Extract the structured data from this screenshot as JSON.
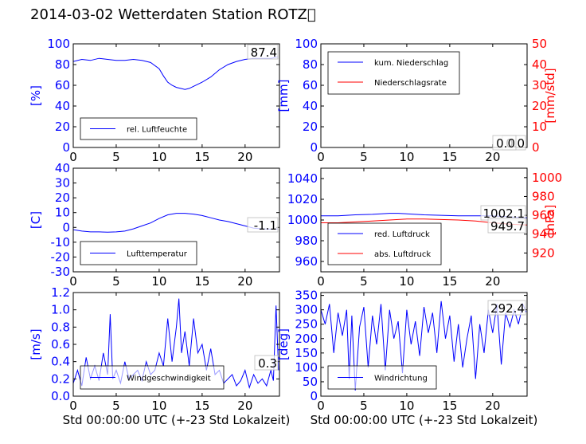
{
  "title": "2014-03-02 Wetterdaten Station ROTZ\u0000",
  "chart_data": [
    {
      "id": "humidity",
      "type": "line",
      "ylabel": "[%]",
      "ylim": [
        0,
        100
      ],
      "yticks": [
        0,
        20,
        40,
        60,
        80,
        100
      ],
      "xlim": [
        0,
        24
      ],
      "xticks": [
        0,
        5,
        10,
        15,
        20
      ],
      "legend_position": "lower-left",
      "series": [
        {
          "name": "rel. Luftfeuchte",
          "color": "#0000ff",
          "x": [
            0,
            1,
            2,
            3,
            4,
            5,
            6,
            7,
            8,
            9,
            10,
            10.5,
            11,
            11.5,
            12,
            12.5,
            13,
            13.5,
            14,
            14.5,
            15,
            16,
            17,
            18,
            19,
            20,
            21,
            22,
            23,
            23.8
          ],
          "y": [
            83,
            85,
            84,
            86,
            85,
            84,
            84,
            85,
            84,
            82,
            76,
            69,
            63,
            60,
            58,
            57,
            56,
            57,
            59,
            61,
            63,
            68,
            75,
            80,
            83,
            85,
            86,
            86,
            86,
            87.4
          ]
        }
      ],
      "annotations": [
        {
          "text": "87.4",
          "color": "#000000"
        }
      ]
    },
    {
      "id": "precip",
      "type": "line",
      "ylabel": "[mm]",
      "ylabel_right": "[mm/std]",
      "ylim": [
        0,
        100
      ],
      "yticks": [
        0,
        20,
        40,
        60,
        80,
        100
      ],
      "ylim_right": [
        0,
        50
      ],
      "yticks_right": [
        0,
        10,
        20,
        30,
        40,
        50
      ],
      "xlim": [
        0,
        24
      ],
      "xticks": [
        0,
        5,
        10,
        15,
        20
      ],
      "legend_position": "upper-left",
      "series": [
        {
          "name": "kum. Niederschlag",
          "color": "#0000ff",
          "x": [
            0,
            24
          ],
          "y": [
            0,
            0
          ]
        },
        {
          "name": "Niederschlagsrate",
          "color": "#ff0000",
          "axis": "right",
          "x": [
            0,
            24
          ],
          "y": [
            0,
            0
          ]
        }
      ],
      "annotations": [
        {
          "text": "0.0",
          "color": "#000000"
        },
        {
          "text": "0.0",
          "color": "#000000"
        }
      ]
    },
    {
      "id": "temperature",
      "type": "line",
      "ylabel": "[C]",
      "ylim": [
        -30,
        40
      ],
      "yticks": [
        -30,
        -20,
        -10,
        0,
        10,
        20,
        30,
        40
      ],
      "xlim": [
        0,
        24
      ],
      "xticks": [
        0,
        5,
        10,
        15,
        20
      ],
      "legend_position": "lower-left",
      "series": [
        {
          "name": "Lufttemperatur",
          "color": "#0000ff",
          "x": [
            0,
            1,
            2,
            3,
            4,
            5,
            6,
            7,
            8,
            9,
            10,
            11,
            12,
            13,
            14,
            15,
            16,
            17,
            18,
            19,
            20,
            21,
            22,
            23,
            23.8
          ],
          "y": [
            -1.5,
            -2.5,
            -3,
            -3,
            -3.2,
            -3,
            -2.5,
            -1,
            1,
            3,
            6,
            8.5,
            9.5,
            9.5,
            9,
            8,
            6.5,
            5,
            4,
            2.5,
            1,
            -0.5,
            -1,
            -1.2,
            -1.1
          ]
        }
      ],
      "annotations": [
        {
          "text": "-1.1",
          "color": "#000000"
        }
      ]
    },
    {
      "id": "pressure",
      "type": "line",
      "ylabel": "",
      "ylabel_right": "[hPa]",
      "ylim": [
        950,
        1050
      ],
      "yticks": [
        960,
        980,
        1000,
        1020,
        1040
      ],
      "ylim_right": [
        900,
        1010
      ],
      "yticks_right": [
        920,
        940,
        960,
        980,
        1000
      ],
      "xlim": [
        0,
        24
      ],
      "xticks": [
        0,
        5,
        10,
        15,
        20
      ],
      "legend_position": "lower-left",
      "series": [
        {
          "name": "red. Luftdruck",
          "color": "#0000ff",
          "x": [
            0,
            2,
            4,
            6,
            8,
            9,
            10,
            12,
            14,
            16,
            18,
            20,
            22,
            24
          ],
          "y": [
            1004,
            1004,
            1005,
            1005.5,
            1006.5,
            1006.5,
            1006,
            1005,
            1004.5,
            1004,
            1004,
            1004,
            1003,
            1002.1
          ]
        },
        {
          "name": "abs. Luftdruck",
          "color": "#ff0000",
          "axis": "right",
          "x": [
            0,
            2,
            4,
            6,
            8,
            10,
            12,
            14,
            16,
            18,
            20,
            22,
            24
          ],
          "y": [
            952,
            952,
            953,
            954,
            955,
            956,
            956,
            955.5,
            955,
            954,
            952,
            950.5,
            949.7
          ]
        }
      ],
      "annotations": [
        {
          "text": "1002.1",
          "color": "#000000"
        },
        {
          "text": "949.7",
          "color": "#000000"
        }
      ]
    },
    {
      "id": "windspeed",
      "type": "line",
      "ylabel": "[m/s]",
      "ylim": [
        0,
        1.2
      ],
      "yticks": [
        0.0,
        0.2,
        0.4,
        0.6,
        0.8,
        1.0,
        1.2
      ],
      "xlim": [
        0,
        24
      ],
      "xticks": [
        0,
        5,
        10,
        15,
        20
      ],
      "xlabel": "Std 00:00:00 UTC (+-23 Std Lokalzeit)",
      "legend_position": "lower-left",
      "series": [
        {
          "name": "Windgeschwindigkeit",
          "color": "#0000ff",
          "x": [
            0,
            0.5,
            1,
            1.5,
            2,
            2.5,
            3,
            3.5,
            4,
            4.3,
            4.6,
            5,
            5.5,
            6,
            6.5,
            7,
            7.5,
            8,
            8.5,
            9,
            9.5,
            10,
            10.5,
            11,
            11.5,
            12,
            12.3,
            12.6,
            13,
            13.5,
            14,
            14.5,
            15,
            15.5,
            16,
            16.5,
            17,
            17.5,
            18,
            18.5,
            19,
            19.5,
            20,
            20.5,
            21,
            21.5,
            22,
            22.5,
            23,
            23.3,
            23.6,
            23.9
          ],
          "y": [
            0.15,
            0.3,
            0.12,
            0.45,
            0.2,
            0.35,
            0.18,
            0.5,
            0.25,
            0.95,
            0.2,
            0.3,
            0.15,
            0.4,
            0.2,
            0.25,
            0.3,
            0.18,
            0.4,
            0.25,
            0.3,
            0.5,
            0.35,
            0.9,
            0.4,
            0.8,
            1.13,
            0.5,
            0.75,
            0.35,
            0.9,
            0.5,
            0.6,
            0.3,
            0.55,
            0.25,
            0.3,
            0.15,
            0.2,
            0.25,
            0.12,
            0.18,
            0.3,
            0.1,
            0.25,
            0.15,
            0.2,
            0.12,
            0.3,
            0.18,
            1.05,
            0.3
          ]
        }
      ],
      "annotations": [
        {
          "text": "0.3",
          "color": "#000000"
        }
      ]
    },
    {
      "id": "winddir",
      "type": "line",
      "ylabel": "[deg]",
      "ylim": [
        0,
        360
      ],
      "yticks": [
        0,
        50,
        100,
        150,
        200,
        250,
        300,
        350
      ],
      "xlim": [
        0,
        24
      ],
      "xticks": [
        0,
        5,
        10,
        15,
        20
      ],
      "xlabel": "Std 00:00:00 UTC (+-23 Std Lokalzeit)",
      "legend_position": "lower-left",
      "series": [
        {
          "name": "Windrichtung",
          "color": "#0000ff",
          "x": [
            0,
            0.5,
            1,
            1.5,
            2,
            2.5,
            3,
            3.3,
            3.6,
            4,
            4.5,
            5,
            5.5,
            6,
            6.5,
            7,
            7.5,
            8,
            8.5,
            9,
            9.5,
            10,
            10.5,
            11,
            11.5,
            12,
            12.5,
            13,
            13.5,
            14,
            14.5,
            15,
            15.5,
            16,
            16.5,
            17,
            17.5,
            18,
            18.5,
            19,
            19.5,
            20,
            20.5,
            21,
            21.5,
            22,
            22.5,
            23,
            23.5,
            23.9
          ],
          "y": [
            300,
            250,
            320,
            150,
            290,
            210,
            300,
            60,
            280,
            20,
            240,
            310,
            100,
            280,
            180,
            320,
            90,
            300,
            200,
            260,
            80,
            300,
            180,
            260,
            140,
            310,
            220,
            290,
            150,
            330,
            200,
            280,
            120,
            250,
            100,
            200,
            280,
            60,
            250,
            150,
            300,
            220,
            320,
            110,
            290,
            240,
            300,
            250,
            320,
            292.4
          ]
        }
      ],
      "annotations": [
        {
          "text": "292.4",
          "color": "#000000"
        }
      ]
    }
  ]
}
